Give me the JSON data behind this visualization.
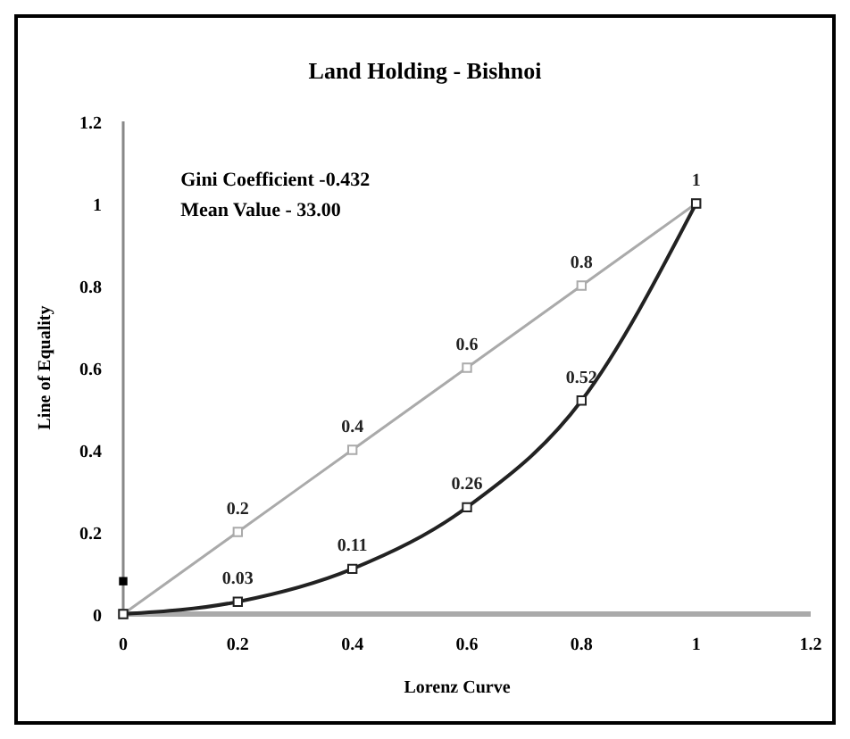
{
  "chart_data": {
    "type": "line",
    "title": "Land Holding - Bishnoi",
    "xlabel": "Lorenz Curve",
    "ylabel": "Line of Equality",
    "annotations": [
      "Gini Coefficient -0.432",
      "Mean Value - 33.00"
    ],
    "x": [
      0,
      0.2,
      0.4,
      0.6,
      0.8,
      1
    ],
    "series": [
      {
        "color": "#aaaaaa",
        "values": [
          0,
          0.2,
          0.4,
          0.6,
          0.8,
          1
        ],
        "value_labels": [
          null,
          "0.2",
          "0.4",
          "0.6",
          "0.8",
          "1"
        ],
        "marker": "square"
      },
      {
        "color": "#222222",
        "values": [
          0,
          0.03,
          0.11,
          0.26,
          0.52,
          1
        ],
        "value_labels": [
          null,
          "0.03",
          "0.11",
          "0.26",
          "0.52",
          null
        ],
        "marker": "square"
      },
      {
        "type": "scatter",
        "color": "#000000",
        "x": [
          0
        ],
        "values": [
          0.08
        ],
        "marker": "square"
      }
    ],
    "xlim": [
      0,
      1.2
    ],
    "xticks": [
      0,
      0.2,
      0.4,
      0.6,
      0.8,
      1,
      1.2
    ],
    "ylim": [
      0,
      1.2
    ],
    "yticks": [
      0,
      0.2,
      0.4,
      0.6,
      0.8,
      1,
      1.2
    ],
    "grid": false
  }
}
